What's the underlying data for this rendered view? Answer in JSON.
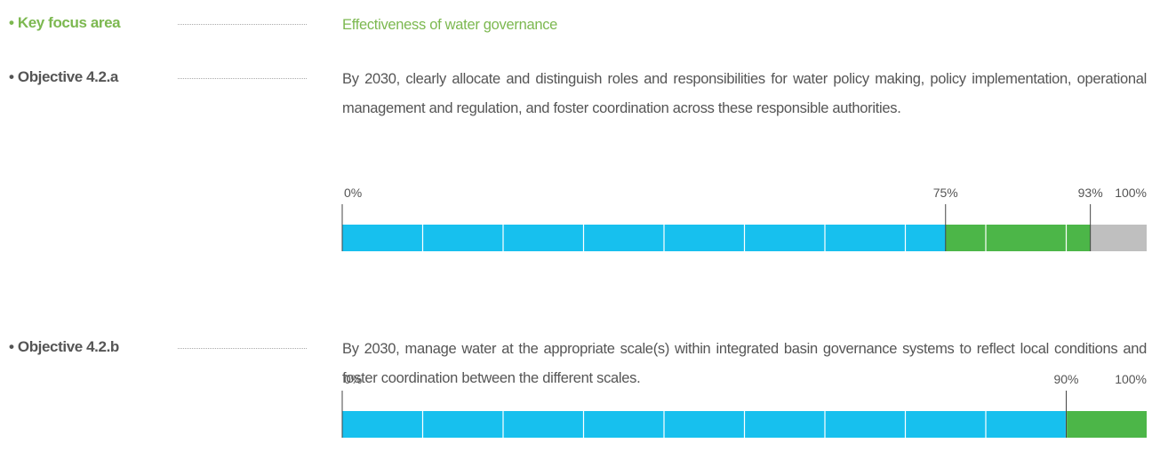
{
  "items": [
    {
      "label": "Key focus area",
      "text": "Effectiveness of water governance"
    },
    {
      "label": "Objective 4.2.a",
      "text": "By 2030, clearly allocate and distinguish roles and responsibilities for water policy making, policy implementation, operational management and regulation, and foster coordination across these responsible authorities.",
      "bar": {
        "ticks": [
          {
            "value": 0,
            "label": "0%"
          },
          {
            "value": 75,
            "label": "75%"
          },
          {
            "value": 93,
            "label": "93%"
          },
          {
            "value": 100,
            "label": "100%"
          }
        ],
        "segment_colors": [
          "#17c0ee",
          "#4cb648",
          "#bfbfbf"
        ],
        "xlim": [
          0,
          100
        ],
        "grid_step": 10
      }
    },
    {
      "label": "Objective 4.2.b",
      "text": "By 2030, manage water at the appropriate scale(s) within integrated basin governance systems to reflect local conditions and foster coordination between the different scales.",
      "bar": {
        "ticks": [
          {
            "value": 0,
            "label": "0%"
          },
          {
            "value": 90,
            "label": "90%"
          },
          {
            "value": 100,
            "label": "100%"
          }
        ],
        "segment_colors": [
          "#17c0ee",
          "#4cb648"
        ],
        "xlim": [
          0,
          100
        ],
        "grid_step": 10
      }
    }
  ]
}
